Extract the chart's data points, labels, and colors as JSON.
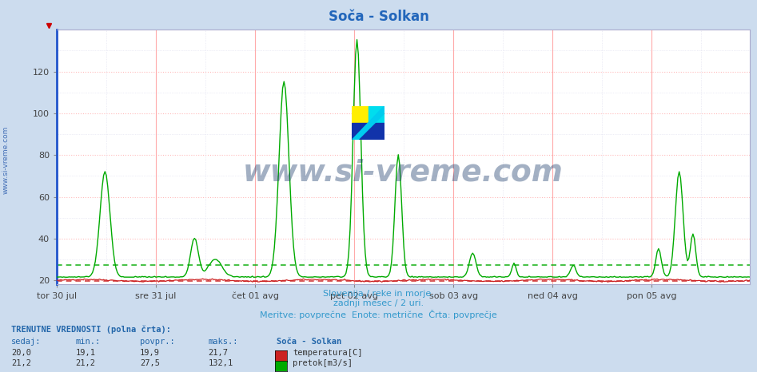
{
  "title": "Soča - Solkan",
  "subtitle1": "Slovenija / reke in morje.",
  "subtitle2": "zadnji mesec / 2 uri.",
  "subtitle3": "Meritve: povprečne  Enote: metrične  Črta: povprečje",
  "bg_color": "#ccdcee",
  "plot_bg_color": "#ffffff",
  "grid_color_major": "#ffbbbb",
  "grid_color_minor": "#ddddee",
  "x_labels": [
    "tor 30 jul",
    "sre 31 jul",
    "čet 01 avg",
    "pet 02 avg",
    "sob 03 avg",
    "ned 04 avg",
    "pon 05 avg"
  ],
  "n_points": 504,
  "ymin": 18,
  "ymax": 140,
  "yticks": [
    20,
    40,
    60,
    80,
    100,
    120
  ],
  "temp_color": "#cc2222",
  "flow_color": "#00aa00",
  "avg_flow_color": "#00aa00",
  "avg_temp_color": "#cc2222",
  "watermark_text": "www.si-vreme.com",
  "watermark_color": "#1a3a6a",
  "watermark_alpha": 0.4,
  "left_text_color": "#2255aa",
  "vline_color": "#ffaaaa",
  "blue_left_color": "#2255cc",
  "info_color": "#2266aa",
  "bottom_text_color": "#3399cc",
  "title_color": "#2266bb",
  "temp_min": 19.1,
  "temp_max": 21.7,
  "temp_avg": 19.9,
  "temp_current": 20.0,
  "flow_min": 21.2,
  "flow_max": 132.1,
  "flow_avg": 27.5,
  "flow_current": 21.2
}
